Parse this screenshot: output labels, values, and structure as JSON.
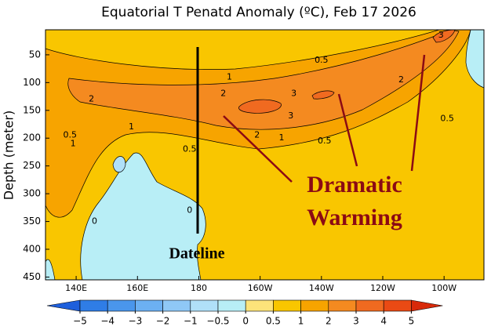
{
  "chart_data": {
    "type": "contour",
    "title": "Equatorial T Penatd Anomaly (ºC), Feb 17 2026",
    "ylabel": "Depth (meter)",
    "xlim": [
      130,
      273
    ],
    "ylim": [
      5,
      455
    ],
    "y_inverted": true,
    "xticks": [
      {
        "value": 140,
        "label": "140E"
      },
      {
        "value": 160,
        "label": "160E"
      },
      180,
      {
        "value": 200,
        "label": "160W"
      },
      {
        "value": 220,
        "label": "140W"
      },
      {
        "value": 240,
        "label": "120W"
      },
      {
        "value": 260,
        "label": "100W"
      }
    ],
    "yticks": [
      50,
      100,
      150,
      200,
      250,
      300,
      350,
      400,
      450
    ],
    "colorbar": {
      "ticks": [
        {
          "value": -5,
          "label": "−5"
        },
        {
          "value": -4,
          "label": "−4"
        },
        {
          "value": -3,
          "label": "−3"
        },
        {
          "value": -2,
          "label": "−2"
        },
        {
          "value": -1,
          "label": "−1"
        },
        {
          "value": -0.5,
          "label": "−0.5"
        },
        0,
        0.5,
        1,
        2,
        3,
        4,
        5
      ],
      "colors": [
        "#1e5fdc",
        "#2f7de6",
        "#4a96ec",
        "#6cb0f2",
        "#8fc8f6",
        "#b0e0f8",
        "#b8eef6",
        "#fde37a",
        "#f9c600",
        "#f7a400",
        "#f48a20",
        "#f06a20",
        "#ea4a14",
        "#d82a0a"
      ]
    },
    "contour_labels": [
      {
        "value": 0.5,
        "x": 220,
        "y": 60
      },
      {
        "value": 1,
        "x": 190,
        "y": 90
      },
      {
        "value": 2,
        "x": 145,
        "y": 130
      },
      {
        "value": 2,
        "x": 188,
        "y": 120
      },
      {
        "value": 3,
        "x": 211,
        "y": 120
      },
      {
        "value": 3,
        "x": 210,
        "y": 160
      },
      {
        "value": 1,
        "x": 158,
        "y": 180
      },
      {
        "value": 0.5,
        "x": 138,
        "y": 195
      },
      {
        "value": 1,
        "x": 139,
        "y": 210
      },
      {
        "value": 0.5,
        "x": 177,
        "y": 220
      },
      {
        "value": 2,
        "x": 199,
        "y": 195
      },
      {
        "value": 1,
        "x": 207,
        "y": 200
      },
      {
        "value": 0.5,
        "x": 221,
        "y": 205
      },
      {
        "value": 2,
        "x": 246,
        "y": 95
      },
      {
        "value": 3,
        "x": 259,
        "y": 15
      },
      {
        "value": 0.5,
        "x": 261,
        "y": 165
      },
      {
        "value": 0,
        "x": 177,
        "y": 330
      },
      {
        "value": 0,
        "x": 146,
        "y": 350
      }
    ],
    "annotations": [
      "Dramatic",
      "Warming",
      "Dateline"
    ]
  }
}
